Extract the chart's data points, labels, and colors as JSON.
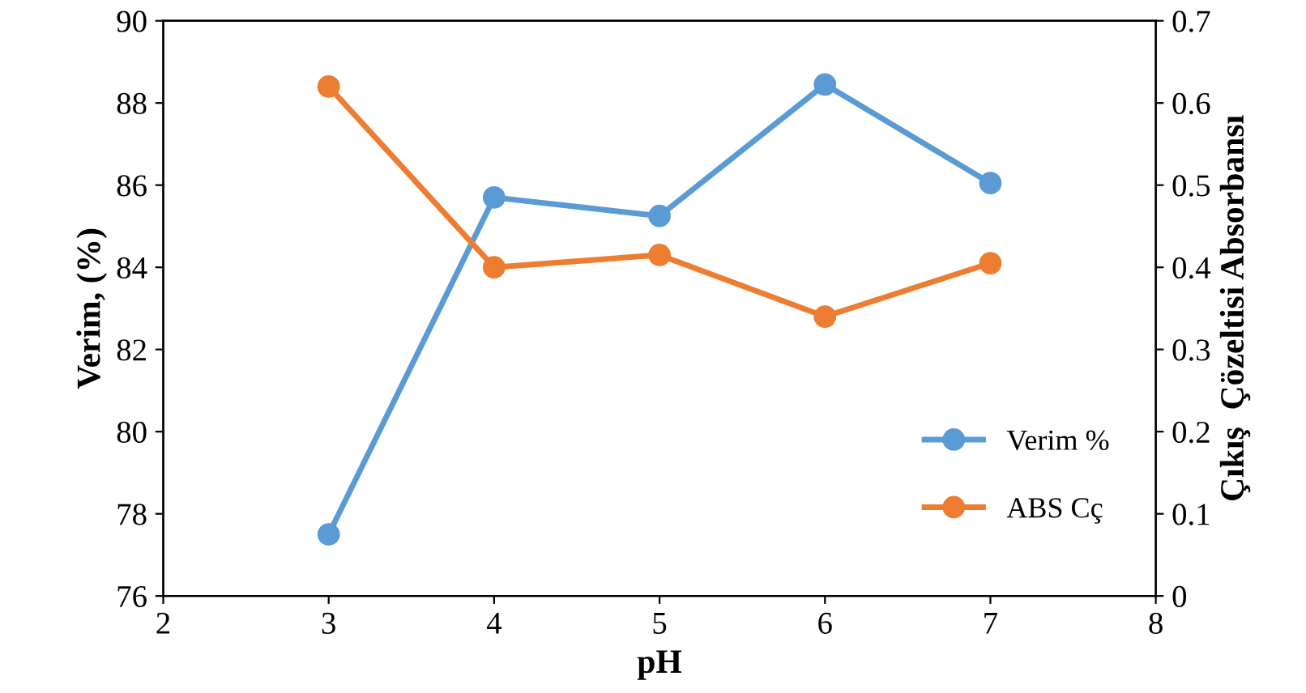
{
  "chart_data": {
    "type": "line",
    "xlabel": "pH",
    "ylabel": "Verim, (%)",
    "y2label": "Çıkış  Çözeltisi Absorbansı",
    "x": [
      3,
      4,
      5,
      6,
      7
    ],
    "series": [
      {
        "name": "Verim %",
        "color": "#5b9bd5",
        "values": [
          77.5,
          85.7,
          85.25,
          88.45,
          86.05
        ]
      },
      {
        "name": "ABS Cç",
        "color": "#ed7d31",
        "values": [
          0.62,
          0.4,
          0.415,
          0.34,
          0.405
        ],
        "axis": "y2"
      }
    ],
    "xlim": [
      2,
      8
    ],
    "xticks": [
      2,
      3,
      4,
      5,
      6,
      7,
      8
    ],
    "ylim": [
      76,
      90
    ],
    "yticks": [
      76,
      78,
      80,
      82,
      84,
      86,
      88,
      90
    ],
    "y2lim": [
      0,
      0.7
    ],
    "y2ticks": [
      0,
      0.1,
      0.2,
      0.3,
      0.4,
      0.5,
      0.6,
      0.7
    ],
    "marker": "circle",
    "line_style": "solid",
    "grid": false,
    "legend": "bottom right"
  }
}
